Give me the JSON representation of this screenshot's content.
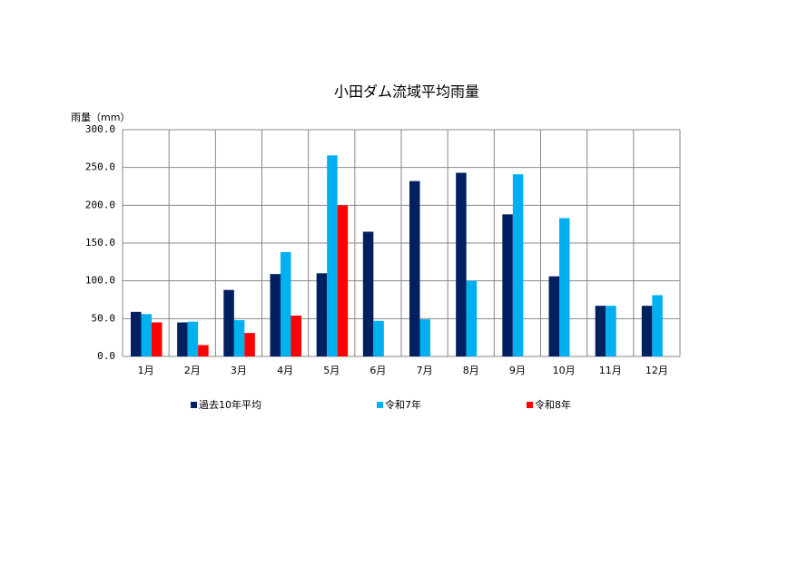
{
  "chart_data": {
    "type": "bar",
    "title": "小田ダム流域平均雨量",
    "y_label": "雨量（mm）",
    "categories": [
      "1月",
      "2月",
      "3月",
      "4月",
      "5月",
      "6月",
      "7月",
      "8月",
      "9月",
      "10月",
      "11月",
      "12月"
    ],
    "series": [
      {
        "name": "過去10年平均",
        "color": "#002060",
        "values": [
          59,
          45,
          88,
          109,
          110,
          165,
          232,
          243,
          188,
          106,
          67,
          67
        ]
      },
      {
        "name": "令和7年",
        "color": "#00b0f0",
        "values": [
          56,
          46,
          48,
          138,
          266,
          47,
          49,
          100,
          241,
          183,
          67,
          81
        ]
      },
      {
        "name": "令和8年",
        "color": "#ff0000",
        "values": [
          45,
          15,
          31,
          54,
          200,
          null,
          null,
          null,
          null,
          null,
          null,
          null
        ]
      }
    ],
    "ylim": [
      0,
      300
    ],
    "yticks": [
      {
        "value": 0,
        "label": "0.0"
      },
      {
        "value": 50,
        "label": "50.0"
      },
      {
        "value": 100,
        "label": "100.0"
      },
      {
        "value": 150,
        "label": "150.0"
      },
      {
        "value": 200,
        "label": "200.0"
      },
      {
        "value": 250,
        "label": "250.0"
      },
      {
        "value": 300,
        "label": "300.0"
      }
    ],
    "grid": true
  }
}
